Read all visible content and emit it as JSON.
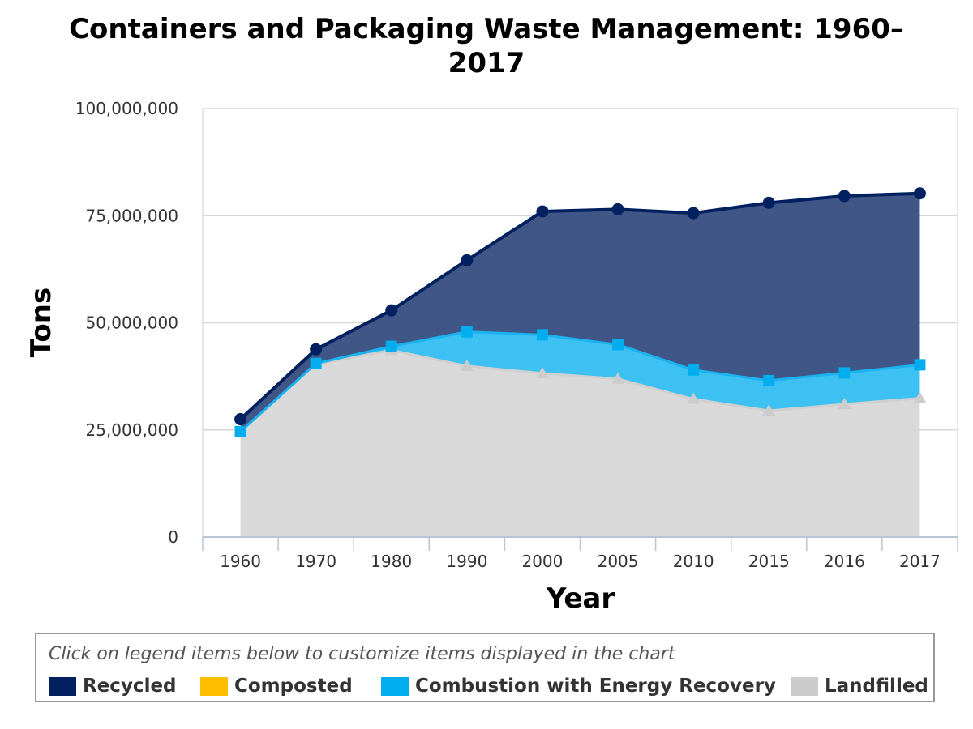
{
  "chart_data": {
    "type": "area",
    "stacked": true,
    "title": "Containers and Packaging Waste Management: 1960–2017",
    "title_lines": [
      "Containers and Packaging Waste Management: 1960–",
      "2017"
    ],
    "xlabel": "Year",
    "ylabel": "Tons",
    "categories": [
      "1960",
      "1970",
      "1980",
      "1990",
      "2000",
      "2005",
      "2010",
      "2015",
      "2016",
      "2017"
    ],
    "ylim": [
      0,
      100000000
    ],
    "y_ticks": [
      0,
      25000000,
      50000000,
      75000000,
      100000000
    ],
    "y_tick_labels": [
      "0",
      "25,000,000",
      "50,000,000",
      "75,000,000",
      "100,000,000"
    ],
    "grid": true,
    "legend_position": "bottom",
    "series": [
      {
        "name": "Landfilled",
        "color": "#cccccc",
        "marker": "triangle",
        "values": [
          24600000,
          40300000,
          43600000,
          39900000,
          38200000,
          36900000,
          32200000,
          29500000,
          31000000,
          32400000
        ]
      },
      {
        "name": "Composted",
        "color": "#ffbf00",
        "marker": "none",
        "values": [
          0,
          0,
          0,
          0,
          0,
          0,
          0,
          0,
          0,
          0
        ]
      },
      {
        "name": "Combustion with Energy Recovery",
        "color": "#00aeef",
        "marker": "square",
        "values": [
          0,
          200000,
          900000,
          8000000,
          9000000,
          8000000,
          6800000,
          7000000,
          7300000,
          7800000
        ]
      },
      {
        "name": "Recycled",
        "color": "#002060",
        "marker": "circle",
        "values": [
          2900000,
          3300000,
          8400000,
          16700000,
          28800000,
          31600000,
          36600000,
          41500000,
          41300000,
          40000000
        ]
      }
    ]
  },
  "legend": {
    "hint": "Click on legend items below to customize items displayed in the chart",
    "items": [
      {
        "label": "Recycled",
        "color": "#002060"
      },
      {
        "label": "Composted",
        "color": "#ffbf00"
      },
      {
        "label": "Combustion with Energy Recovery",
        "color": "#00aeef"
      },
      {
        "label": "Landfilled",
        "color": "#cccccc"
      }
    ]
  }
}
